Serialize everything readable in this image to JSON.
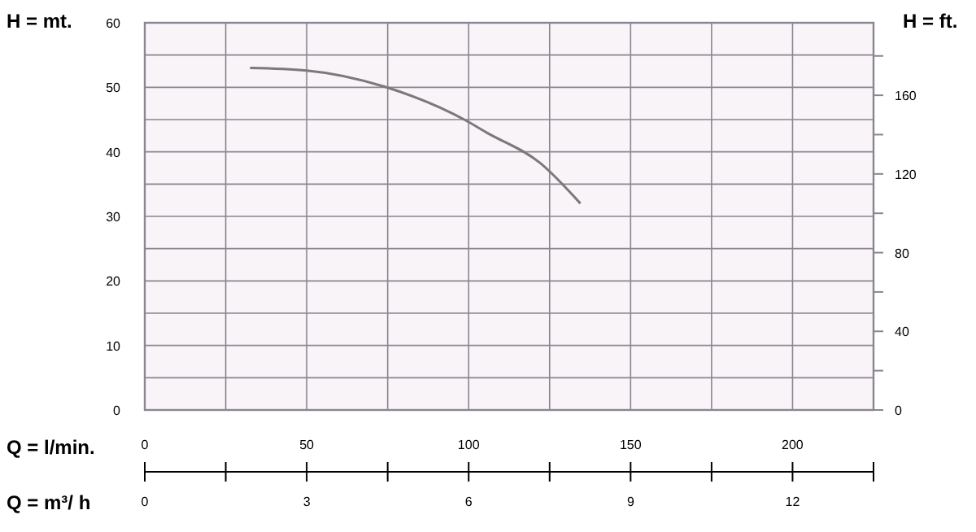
{
  "chart_data": {
    "type": "line",
    "xlabel": "Q = l/min.",
    "x2label": "Q = m³/ h",
    "ylabel": "H = mt.",
    "y2label": "H = ft.",
    "x": [
      32.5,
      50,
      74,
      99,
      105.5,
      122,
      134.5
    ],
    "series": [
      {
        "color": "#7a7a7a",
        "values": [
          53.0,
          52.6,
          50.1,
          44.9,
          43,
          38.3,
          32
        ]
      }
    ],
    "xlim": [
      0,
      225
    ],
    "xticks": [
      0,
      {
        "value": 25,
        "label": null
      },
      50,
      {
        "value": 75,
        "label": null
      },
      100,
      {
        "value": 125,
        "label": null
      },
      150,
      {
        "value": 175,
        "label": null
      },
      200,
      {
        "value": 225,
        "label": null
      }
    ],
    "x2lim": [
      0,
      13.5
    ],
    "x2ticks": [
      0,
      {
        "value": 1.5,
        "label": null
      },
      3,
      {
        "value": 4.5,
        "label": null
      },
      6,
      {
        "value": 7.5,
        "label": null
      },
      9,
      {
        "value": 10.5,
        "label": null
      },
      12,
      {
        "value": 13.5,
        "label": null
      }
    ],
    "ylim": [
      0,
      60
    ],
    "yticks": [
      0,
      {
        "value": 5,
        "label": null
      },
      10,
      {
        "value": 15,
        "label": null
      },
      20,
      {
        "value": 25,
        "label": null
      },
      30,
      {
        "value": 35,
        "label": null
      },
      40,
      {
        "value": 45,
        "label": null
      },
      50,
      {
        "value": 55,
        "label": null
      },
      60
    ],
    "y2lim": [
      0,
      196.85
    ],
    "y2ticks": [
      0,
      {
        "value": 20,
        "label": null
      },
      40,
      {
        "value": 60,
        "label": null
      },
      80,
      {
        "value": 100,
        "label": null
      },
      120,
      {
        "value": 140,
        "label": null
      },
      160,
      {
        "value": 180,
        "label": null
      }
    ],
    "grid": true,
    "marker": "none",
    "line_style": "solid"
  }
}
